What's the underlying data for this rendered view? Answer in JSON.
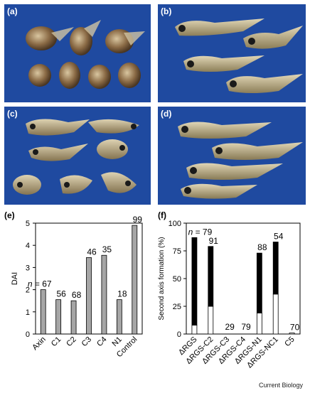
{
  "panels": {
    "a": "(a)",
    "b": "(b)",
    "c": "(c)",
    "d": "(d)",
    "e": "(e)",
    "f": "(f)"
  },
  "credit": "Current Biology",
  "chart_data": [
    {
      "type": "bar",
      "panel": "(e)",
      "ylabel": "DAI",
      "categories": [
        "Axin",
        "C1",
        "C2",
        "C3",
        "C4",
        "N1",
        "Control"
      ],
      "values": [
        2.0,
        1.55,
        1.5,
        3.45,
        3.55,
        1.55,
        4.9
      ],
      "n_labels": [
        "n = 67",
        "56",
        "68",
        "46",
        "35",
        "18",
        "99"
      ],
      "ylim": [
        0,
        5
      ],
      "yticks": [
        0,
        1,
        2,
        3,
        4,
        5
      ],
      "bar_color": "#a6a6a6"
    },
    {
      "type": "bar",
      "stacked": true,
      "panel": "(f)",
      "ylabel": "Second axis formation (%)",
      "categories": [
        "ΔRGS",
        "ΔRGS-C2",
        "ΔRGS-C3",
        "ΔRGS-C4",
        "ΔRGS-N1",
        "ΔRGS-NC1",
        "C5"
      ],
      "series": [
        {
          "values": [
            8,
            25,
            0,
            0,
            19,
            36,
            1
          ],
          "color": "#ffffff"
        },
        {
          "values": [
            79,
            54,
            0,
            0,
            54,
            47,
            0
          ],
          "color": "#000000"
        }
      ],
      "n_labels": [
        "n = 79",
        "91",
        "29",
        "79",
        "88",
        "54",
        "70"
      ],
      "ylim": [
        0,
        100
      ],
      "yticks": [
        0,
        25,
        50,
        75,
        100
      ]
    }
  ]
}
